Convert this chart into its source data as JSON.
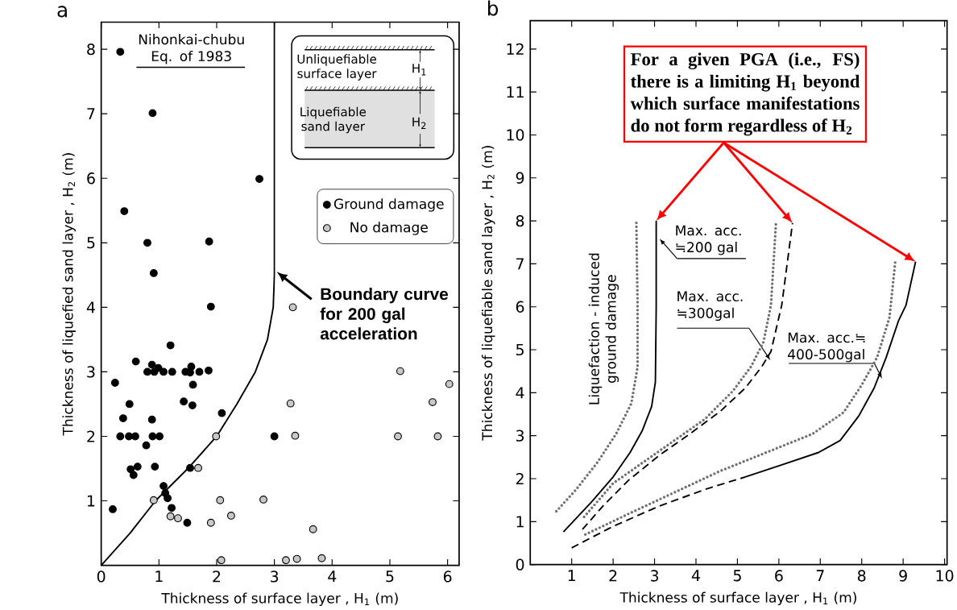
{
  "chart_data": [
    {
      "type": "scatter",
      "title": "a",
      "xlabel": "Thickness of surface layer , H$_{1}$ (m)",
      "ylabel": "Thickness of liquefied sand layer , H$_{2}$ (m)",
      "xlim": [
        0,
        6.2
      ],
      "ylim": [
        0,
        8.42
      ],
      "xticks": [
        0,
        1,
        2,
        3,
        4,
        5,
        6
      ],
      "yticks": [
        1,
        2,
        3,
        4,
        5,
        6,
        7,
        8
      ],
      "marker": "circle",
      "legend": "top right",
      "series": [
        {
          "name": "Ground damage",
          "color": "#000000",
          "x": [
            0.33,
            0.89,
            2.74,
            0.4,
            0.8,
            1.87,
            0.91,
            1.9,
            0.2,
            0.24,
            0.38,
            0.33,
            0.49,
            0.48,
            0.59,
            0.6,
            0.51,
            0.56,
            0.63,
            0.78,
            0.88,
            0.89,
            1.01,
            0.93,
            0.8,
            0.88,
            0.92,
            0.99,
            1.08,
            1.2,
            1.23,
            1.08,
            1.11,
            1.15,
            1.22,
            1.49,
            1.43,
            1.58,
            1.46,
            1.56,
            1.54,
            1.59,
            1.7,
            1.86,
            1.54,
            2.09,
            3.0
          ],
          "values": [
            7.96,
            7.01,
            5.99,
            5.49,
            5.0,
            5.02,
            4.53,
            4.01,
            0.87,
            2.83,
            2.28,
            2.0,
            2.5,
            2.0,
            2.0,
            3.16,
            1.49,
            1.4,
            1.53,
            1.86,
            2.26,
            2.0,
            2.0,
            1.53,
            3.0,
            3.11,
            3.0,
            3.06,
            3.0,
            3.41,
            3.0,
            1.23,
            1.12,
            1.04,
            0.89,
            0.66,
            2.54,
            2.48,
            3.0,
            3.08,
            2.99,
            2.8,
            3.0,
            3.02,
            1.51,
            2.36,
            2.0
          ]
        },
        {
          "name": "No damage",
          "color": "#c8c8c8",
          "x": [
            0.91,
            1.99,
            1.68,
            1.2,
            1.33,
            1.9,
            2.06,
            2.25,
            2.08,
            2.81,
            3.2,
            3.39,
            3.28,
            3.36,
            3.32,
            3.67,
            3.82,
            5.18,
            5.14,
            5.74,
            5.83,
            6.03
          ],
          "values": [
            1.01,
            2.0,
            1.51,
            0.76,
            0.73,
            0.66,
            1.01,
            0.77,
            0.08,
            1.02,
            0.08,
            0.1,
            2.51,
            2.01,
            4.0,
            0.56,
            0.11,
            3.01,
            2.0,
            2.53,
            2.0,
            2.81
          ]
        },
        {
          "type": "line",
          "color": "#000000",
          "marker": "none",
          "line_style": "solid",
          "x": [
            0,
            0.5,
            0.94,
            1.5,
            2.0,
            2.35,
            2.67,
            2.88,
            2.98,
            3.0,
            3.0
          ],
          "values": [
            0,
            0.5,
            1.0,
            1.5,
            2.0,
            2.5,
            3.0,
            3.5,
            4.0,
            4.5,
            8.42
          ]
        }
      ],
      "annotations": [
        "Nihonkai-chubu Eq. of 1983",
        "Unliquefiable surface layer",
        "H$_{1}$",
        "Liquefiable sand layer",
        "H$_{2}$",
        {
          "text": "Boundary curve for 200 gal acceleration",
          "x": 3.0,
          "y": 4.55
        }
      ]
    },
    {
      "type": "line",
      "title": "b",
      "xlabel": "Thickness of surface layer , H$_{1}$ (m)",
      "ylabel": "Thickness of liquefiable sand layer , H$_{2}$ (m)",
      "xlim": [
        0,
        10.06
      ],
      "ylim": [
        0,
        12.66
      ],
      "xticks": [
        1,
        2,
        3,
        4,
        5,
        6,
        7,
        8,
        9,
        10
      ],
      "yticks": [
        0,
        1,
        2,
        3,
        4,
        5,
        6,
        7,
        8,
        9,
        10,
        11,
        12
      ],
      "marker": "none",
      "series": [
        {
          "color": "#000000",
          "line_style": "solid",
          "x": [
            0.8,
            1.48,
            2.0,
            2.41,
            2.7,
            2.93,
            3.02,
            3.04,
            3.04
          ],
          "values": [
            0.76,
            1.46,
            2.04,
            2.61,
            3.11,
            3.68,
            4.25,
            6.0,
            8.0
          ]
        },
        {
          "color": "#000000",
          "line_style": "dashed",
          "x": [
            1.26,
            1.78,
            2.37,
            3.11,
            3.85,
            4.59,
            5.19,
            5.59,
            5.81,
            6.07,
            6.33
          ],
          "values": [
            0.82,
            1.39,
            1.96,
            2.54,
            3.04,
            3.57,
            4.11,
            4.61,
            4.96,
            6.04,
            7.95
          ]
        },
        {
          "color": "#000000",
          "line_style": "dashed",
          "x": [
            1.0,
            2.0,
            3.11,
            4.22,
            5.19
          ],
          "values": [
            0.39,
            0.89,
            1.36,
            1.75,
            2.04
          ]
        },
        {
          "color": "#000000",
          "line_style": "solid",
          "x": [
            5.19,
            6.07,
            6.96,
            7.48,
            7.93,
            8.3,
            8.59,
            8.89,
            9.07,
            9.3
          ],
          "values": [
            2.04,
            2.32,
            2.61,
            2.89,
            3.46,
            4.11,
            4.82,
            5.68,
            6.04,
            7.05
          ]
        },
        {
          "color": "#707070",
          "line_style": "dotted",
          "x": [
            0.63,
            1.11,
            1.63,
            2.07,
            2.44,
            2.59,
            2.59,
            2.56
          ],
          "values": [
            1.24,
            1.75,
            2.39,
            3.04,
            3.75,
            4.6,
            6.04,
            8.02
          ]
        },
        {
          "color": "#707070",
          "line_style": "dotted",
          "x": [
            1.3,
            2.0,
            2.74,
            3.48,
            4.22,
            4.89,
            5.33,
            5.63,
            5.81,
            5.93
          ],
          "values": [
            1.11,
            1.89,
            2.39,
            2.89,
            3.39,
            4.04,
            4.61,
            5.18,
            6.04,
            7.95
          ]
        },
        {
          "color": "#707070",
          "line_style": "dotted",
          "x": [
            1.33,
            2.37,
            3.48,
            4.59,
            5.7,
            6.81,
            7.56,
            8.0,
            8.37,
            8.67,
            8.81
          ],
          "values": [
            0.7,
            1.18,
            1.68,
            2.18,
            2.61,
            3.04,
            3.54,
            4.18,
            4.82,
            5.75,
            7.05
          ]
        }
      ],
      "annotations": [
        "For a given PGA (i.e., FS) there is a limiting H$_{1}$ beyond which surface manifestations do not form regardless of H$_{2}$",
        "Max. acc. ≒200 gal",
        "Max. acc. ≒300gal",
        "Max. acc.≒ 400-500gal",
        "Liquefaction - induced ground damage"
      ]
    }
  ]
}
